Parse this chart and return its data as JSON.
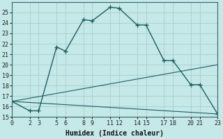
{
  "xlabel": "Humidex (Indice chaleur)",
  "ylabel": "",
  "background_color": "#c5e8e8",
  "grid_color": "#a8cccc",
  "line_color": "#1a6060",
  "xlim": [
    0,
    23
  ],
  "ylim": [
    15,
    26
  ],
  "xticks": [
    0,
    2,
    3,
    5,
    6,
    8,
    9,
    11,
    12,
    14,
    15,
    17,
    18,
    20,
    21,
    23
  ],
  "yticks": [
    15,
    16,
    17,
    18,
    19,
    20,
    21,
    22,
    23,
    24,
    25
  ],
  "series": [
    {
      "x": [
        0,
        2,
        3,
        5,
        6,
        8,
        9,
        11,
        12,
        14,
        15,
        17,
        18,
        20,
        21,
        23
      ],
      "y": [
        16.5,
        15.6,
        15.6,
        21.7,
        21.3,
        24.3,
        24.2,
        25.5,
        25.4,
        23.8,
        23.8,
        20.4,
        20.4,
        18.1,
        18.1,
        15.3
      ],
      "marker": true,
      "linestyle": "-"
    },
    {
      "x": [
        0,
        23
      ],
      "y": [
        16.5,
        20.0
      ],
      "marker": false,
      "linestyle": "-"
    },
    {
      "x": [
        0,
        23
      ],
      "y": [
        16.5,
        15.3
      ],
      "marker": false,
      "linestyle": "-"
    }
  ]
}
